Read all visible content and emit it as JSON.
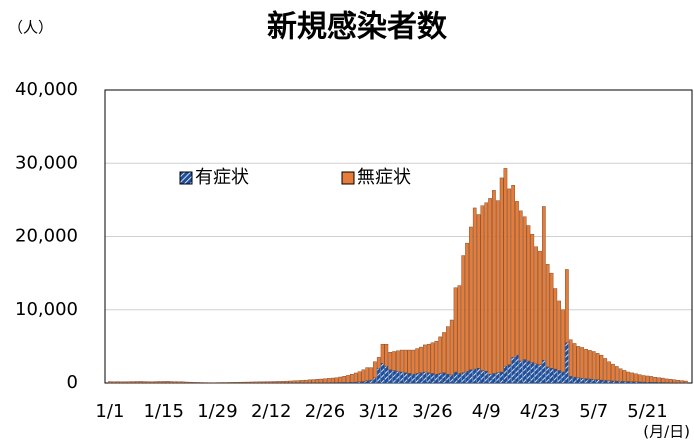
{
  "chart_data": {
    "type": "stacked_bar",
    "title": "新規感染者数",
    "y_unit_label": "（人）",
    "x_unit_label": "(月/日)",
    "categories": [
      "1/1",
      null,
      null,
      null,
      null,
      null,
      null,
      null,
      null,
      null,
      null,
      null,
      null,
      null,
      "1/15",
      null,
      null,
      null,
      null,
      null,
      null,
      null,
      null,
      null,
      null,
      null,
      null,
      null,
      "1/29",
      null,
      null,
      null,
      null,
      null,
      null,
      null,
      null,
      null,
      null,
      null,
      null,
      null,
      "2/12",
      null,
      null,
      null,
      null,
      null,
      null,
      null,
      null,
      null,
      null,
      null,
      null,
      null,
      "2/26",
      null,
      null,
      null,
      null,
      null,
      null,
      null,
      null,
      null,
      null,
      null,
      null,
      null,
      "3/12",
      null,
      null,
      null,
      null,
      null,
      null,
      null,
      null,
      null,
      null,
      null,
      null,
      null,
      "3/26",
      null,
      null,
      null,
      null,
      null,
      null,
      null,
      null,
      null,
      null,
      null,
      null,
      null,
      "4/9",
      null,
      null,
      null,
      null,
      null,
      null,
      null,
      null,
      null,
      null,
      null,
      null,
      null,
      "4/23",
      null,
      null,
      null,
      null,
      null,
      null,
      null,
      null,
      null,
      null,
      null,
      null,
      null,
      "5/7",
      null,
      null,
      null,
      null,
      null,
      null,
      null,
      null,
      null,
      null,
      null,
      null,
      null,
      "5/21",
      null,
      null,
      null,
      null,
      null,
      null,
      null,
      null,
      null,
      null
    ],
    "series": [
      {
        "name": "有症状",
        "color": "#1f4e99",
        "values": [
          20,
          20,
          20,
          20,
          20,
          20,
          20,
          20,
          20,
          20,
          20,
          20,
          20,
          20,
          20,
          20,
          20,
          20,
          20,
          20,
          15,
          15,
          10,
          10,
          10,
          10,
          10,
          10,
          10,
          10,
          10,
          10,
          10,
          10,
          15,
          15,
          15,
          15,
          15,
          20,
          20,
          20,
          20,
          20,
          20,
          20,
          25,
          25,
          25,
          30,
          30,
          30,
          35,
          35,
          40,
          40,
          45,
          50,
          55,
          60,
          70,
          80,
          90,
          100,
          120,
          150,
          200,
          300,
          400,
          700,
          2000,
          2700,
          2300,
          1800,
          1700,
          1600,
          1500,
          1400,
          1300,
          1200,
          1300,
          1400,
          1500,
          1400,
          1300,
          1200,
          1300,
          1400,
          1200,
          1100,
          1500,
          1300,
          1400,
          1600,
          1800,
          1900,
          2000,
          1700,
          1600,
          1200,
          1300,
          1400,
          1500,
          2300,
          2500,
          3500,
          3800,
          3000,
          3200,
          3000,
          2800,
          2600,
          2500,
          3100,
          2200,
          2000,
          1900,
          1700,
          1500,
          5500,
          900,
          800,
          700,
          650,
          600,
          550,
          500,
          450,
          400,
          350,
          300,
          280,
          260,
          240,
          220,
          200,
          180,
          160,
          140,
          120,
          110,
          100,
          90,
          80,
          70,
          60,
          50,
          40,
          30,
          25,
          20
        ]
      },
      {
        "name": "無症状",
        "color": "#e57c3a",
        "values": [
          180,
          160,
          170,
          150,
          160,
          170,
          180,
          190,
          200,
          180,
          170,
          160,
          180,
          190,
          200,
          210,
          180,
          170,
          160,
          150,
          120,
          100,
          80,
          70,
          60,
          50,
          40,
          40,
          50,
          60,
          60,
          70,
          80,
          90,
          100,
          110,
          120,
          130,
          140,
          150,
          160,
          170,
          180,
          190,
          200,
          210,
          230,
          250,
          280,
          300,
          330,
          360,
          400,
          430,
          470,
          500,
          540,
          580,
          620,
          650,
          750,
          850,
          950,
          1100,
          1250,
          1400,
          1600,
          1800,
          1700,
          2200,
          1500,
          2600,
          3000,
          2400,
          2600,
          2800,
          3000,
          3100,
          3200,
          3300,
          3400,
          3500,
          3700,
          3900,
          4200,
          4500,
          5000,
          5500,
          6500,
          7500,
          11500,
          12000,
          16000,
          17500,
          19500,
          22000,
          21000,
          22500,
          23000,
          24000,
          25000,
          23500,
          26500,
          27000,
          24000,
          23500,
          21000,
          20500,
          19500,
          18500,
          17500,
          16000,
          15500,
          21000,
          14000,
          13000,
          11000,
          9500,
          8500,
          10000,
          5000,
          4600,
          4300,
          4200,
          4000,
          3900,
          3800,
          3600,
          3400,
          3000,
          2600,
          2300,
          2000,
          1700,
          1500,
          1300,
          1200,
          1100,
          1000,
          900,
          850,
          800,
          700,
          650,
          600,
          500,
          450,
          400,
          350,
          300,
          250
        ]
      }
    ],
    "ylim": [
      0,
      40000
    ],
    "yticks": [
      0,
      {
        "value": 10000,
        "label": "10,000"
      },
      {
        "value": 20000,
        "label": "20,000"
      },
      {
        "value": 30000,
        "label": "30,000"
      },
      {
        "value": 40000,
        "label": "40,000"
      }
    ],
    "grid": true
  }
}
